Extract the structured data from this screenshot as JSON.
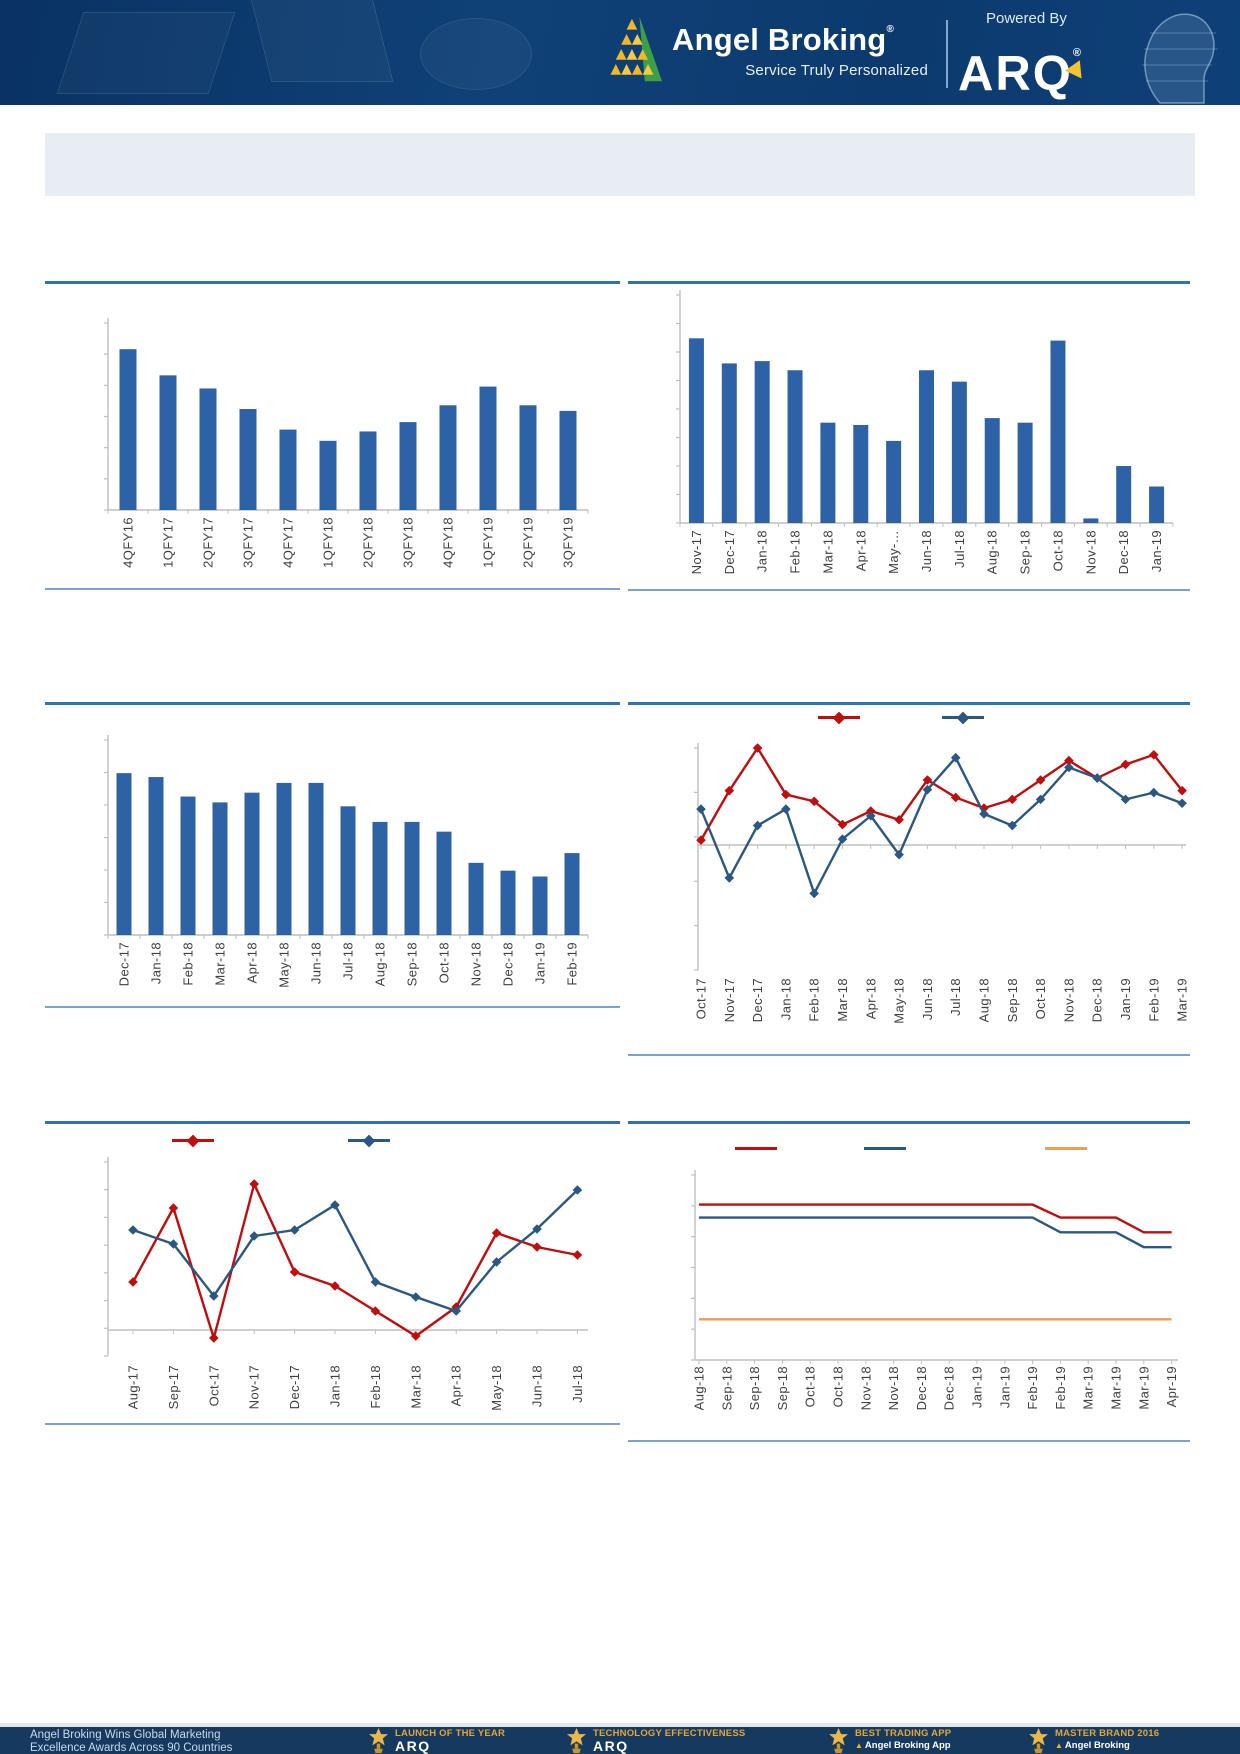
{
  "header": {
    "brand": "Angel Broking",
    "brand_reg": "®",
    "tagline": "Service Truly Personalized",
    "powered_by": "Powered By",
    "arq_logo": "ARQ",
    "arq_reg": "®"
  },
  "colors": {
    "header_navy": "#0E3E74",
    "banner_gray": "#E8EDF3",
    "rule_top_blue": "#2E74B5",
    "rule_bottom_blue": "#7BA2CC",
    "bar_blue": "#2E62A7",
    "series_red": "#C00D0D",
    "series_blue": "#2A5783",
    "series_orange": "#ED9F53",
    "axis_gray": "#BFBFBF",
    "label_gray": "#404040",
    "footer_navy": "#16395F",
    "award_gold": "#E2A63C"
  },
  "chart_data": [
    {
      "id": "quarterly-bar",
      "type": "bar",
      "title": "",
      "categories": [
        "4QFY16",
        "1QFY17",
        "2QFY17",
        "3QFY17",
        "4QFY17",
        "1QFY18",
        "2QFY18",
        "3QFY18",
        "4QFY18",
        "1QFY19",
        "2QFY19",
        "3QFY19"
      ],
      "values": [
        0.86,
        0.72,
        0.65,
        0.54,
        0.43,
        0.37,
        0.42,
        0.47,
        0.56,
        0.66,
        0.56,
        0.53
      ],
      "ylim": [
        0,
        1
      ],
      "grid": false,
      "color": "#2E62A7"
    },
    {
      "id": "monthly-bar-1",
      "type": "bar",
      "title": "",
      "categories": [
        "Nov-17",
        "Dec-17",
        "Jan-18",
        "Feb-18",
        "Mar-18",
        "Apr-18",
        "May-…",
        "Jun-18",
        "Jul-18",
        "Aug-18",
        "Sep-18",
        "Oct-18",
        "Nov-18",
        "Dec-18",
        "Jan-19"
      ],
      "values": [
        0.81,
        0.7,
        0.71,
        0.67,
        0.44,
        0.43,
        0.36,
        0.67,
        0.62,
        0.46,
        0.44,
        0.8,
        0.02,
        0.25,
        0.16
      ],
      "ylim": [
        0,
        1
      ],
      "grid": false,
      "color": "#2E62A7"
    },
    {
      "id": "monthly-bar-2",
      "type": "bar",
      "title": "",
      "categories": [
        "Dec-17",
        "Jan-18",
        "Feb-18",
        "Mar-18",
        "Apr-18",
        "May-18",
        "Jun-18",
        "Jul-18",
        "Aug-18",
        "Sep-18",
        "Oct-18",
        "Nov-18",
        "Dec-18",
        "Jan-19",
        "Feb-19"
      ],
      "values": [
        0.83,
        0.81,
        0.71,
        0.68,
        0.73,
        0.78,
        0.78,
        0.66,
        0.58,
        0.58,
        0.53,
        0.37,
        0.33,
        0.3,
        0.42
      ],
      "ylim": [
        0,
        1
      ],
      "grid": false,
      "color": "#2E62A7"
    },
    {
      "id": "line-dual-1",
      "type": "line",
      "title": "",
      "categories": [
        "Oct-17",
        "Nov-17",
        "Dec-17",
        "Jan-18",
        "Feb-18",
        "Mar-18",
        "Apr-18",
        "May-18",
        "Jun-18",
        "Jul-18",
        "Aug-18",
        "Sep-18",
        "Oct-18",
        "Nov-18",
        "Dec-18",
        "Jan-19",
        "Feb-19",
        "Mar-19"
      ],
      "ylim": [
        -1.29,
        1.0
      ],
      "grid": false,
      "markers": true,
      "legend_position": "top",
      "series": [
        {
          "name": "",
          "color": "#C00D0D",
          "values": [
            0.05,
            0.56,
            1.0,
            0.52,
            0.45,
            0.21,
            0.35,
            0.26,
            0.67,
            0.49,
            0.38,
            0.47,
            0.67,
            0.87,
            0.69,
            0.83,
            0.93,
            0.56
          ]
        },
        {
          "name": "",
          "color": "#2A5783",
          "values": [
            0.37,
            -0.34,
            0.2,
            0.37,
            -0.5,
            0.06,
            0.3,
            -0.1,
            0.57,
            0.9,
            0.32,
            0.2,
            0.47,
            0.8,
            0.69,
            0.47,
            0.54,
            0.43
          ]
        }
      ]
    },
    {
      "id": "line-dual-2",
      "type": "line",
      "title": "",
      "categories": [
        "Aug-17",
        "Sep-17",
        "Oct-17",
        "Nov-17",
        "Dec-17",
        "Jan-18",
        "Feb-18",
        "Mar-18",
        "Apr-18",
        "May-18",
        "Jun-18",
        "Jul-18"
      ],
      "ylim": [
        -0.26,
        1.68
      ],
      "grid": false,
      "markers": true,
      "legend_position": "top",
      "series": [
        {
          "name": "",
          "color": "#C00D0D",
          "values": [
            0.48,
            1.22,
            -0.08,
            1.46,
            0.58,
            0.44,
            0.19,
            -0.06,
            0.23,
            0.97,
            0.83,
            0.75
          ]
        },
        {
          "name": "",
          "color": "#2A5783",
          "values": [
            1.0,
            0.86,
            0.34,
            0.94,
            1.0,
            1.25,
            0.48,
            0.33,
            0.19,
            0.68,
            1.01,
            1.4
          ]
        }
      ]
    },
    {
      "id": "line-triple",
      "type": "line",
      "title": "",
      "categories": [
        "Aug-18",
        "Sep-18",
        "Sep-18",
        "Sep-18",
        "Oct-18",
        "Oct-18",
        "Nov-18",
        "Nov-18",
        "Dec-18",
        "Dec-18",
        "Jan-19",
        "Jan-19",
        "Feb-19",
        "Feb-19",
        "Mar-19",
        "Mar-19",
        "Mar-19",
        "Apr-19"
      ],
      "ylim": [
        0,
        1.0
      ],
      "grid": false,
      "markers": false,
      "legend_position": "top",
      "series": [
        {
          "name": "",
          "color": "#C00D0D",
          "values": [
            0.84,
            0.84,
            0.84,
            0.84,
            0.84,
            0.84,
            0.84,
            0.84,
            0.84,
            0.84,
            0.84,
            0.84,
            0.84,
            0.77,
            0.77,
            0.77,
            0.69,
            0.69
          ]
        },
        {
          "name": "",
          "color": "#2A5783",
          "values": [
            0.77,
            0.77,
            0.77,
            0.77,
            0.77,
            0.77,
            0.77,
            0.77,
            0.77,
            0.77,
            0.77,
            0.77,
            0.77,
            0.69,
            0.69,
            0.69,
            0.61,
            0.61
          ]
        },
        {
          "name": "",
          "color": "#ED9F53",
          "values": [
            0.22,
            0.22,
            0.22,
            0.22,
            0.22,
            0.22,
            0.22,
            0.22,
            0.22,
            0.22,
            0.22,
            0.22,
            0.22,
            0.22,
            0.22,
            0.22,
            0.22,
            0.22
          ]
        }
      ]
    }
  ],
  "footer": {
    "headline_line1": "Angel Broking Wins Global Marketing",
    "headline_line2": "Excellence Awards Across 90 Countries",
    "awards": [
      {
        "title": "LAUNCH OF THE YEAR",
        "subtitle": "ARQ"
      },
      {
        "title": "TECHNOLOGY EFFECTIVENESS",
        "subtitle": "ARQ"
      },
      {
        "title": "BEST TRADING APP",
        "subtitle": "Angel Broking App"
      },
      {
        "title": "MASTER BRAND 2016",
        "subtitle": "Angel Broking"
      }
    ]
  }
}
